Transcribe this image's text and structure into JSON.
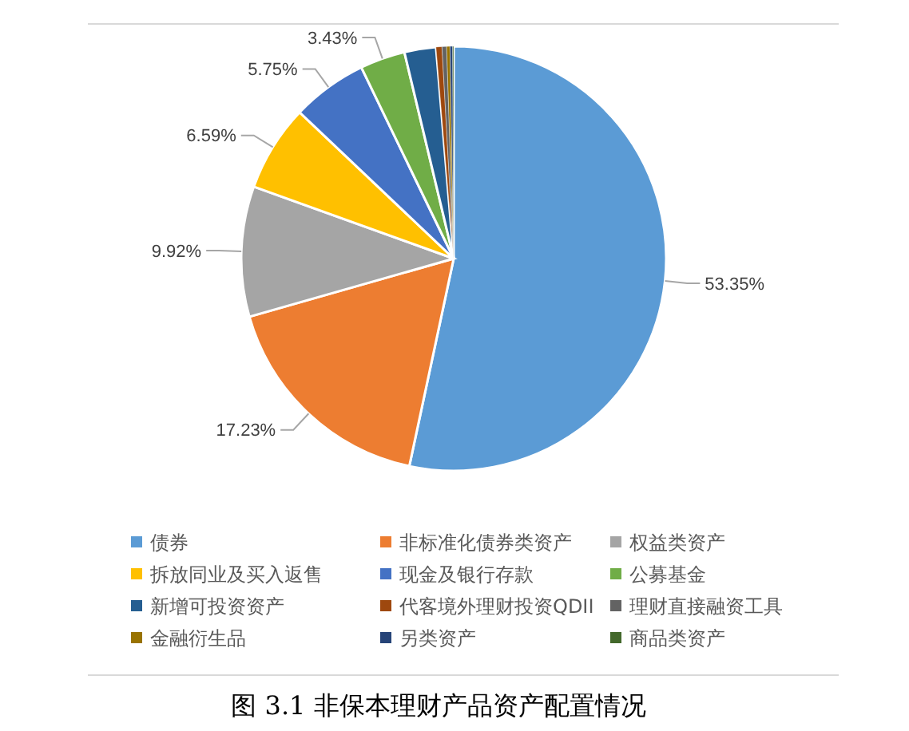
{
  "chart_data": {
    "type": "pie",
    "title": "图 3.1  非保本理财产品资产配置情况",
    "categories": [
      "债券",
      "非标准化债券类资产",
      "权益类资产",
      "拆放同业及买入返售",
      "现金及银行存款",
      "公募基金",
      "新增可投资资产",
      "代客境外理财投资QDII",
      "理财直接融资工具",
      "金融衍生品",
      "另类资产",
      "商品类资产"
    ],
    "values": [
      53.35,
      17.23,
      9.92,
      6.59,
      5.75,
      3.43,
      2.4,
      0.45,
      0.35,
      0.25,
      0.2,
      0.08
    ],
    "value_labels": [
      "53.35%",
      "17.23%",
      "9.92%",
      "6.59%",
      "5.75%",
      "3.43%",
      null,
      null,
      null,
      null,
      null,
      null
    ],
    "colors": [
      "#5b9bd5",
      "#ed7d31",
      "#a5a5a5",
      "#ffc000",
      "#4472c4",
      "#70ad47",
      "#255e91",
      "#9e480e",
      "#636363",
      "#997300",
      "#264478",
      "#43682b"
    ],
    "legend": "bottom"
  }
}
